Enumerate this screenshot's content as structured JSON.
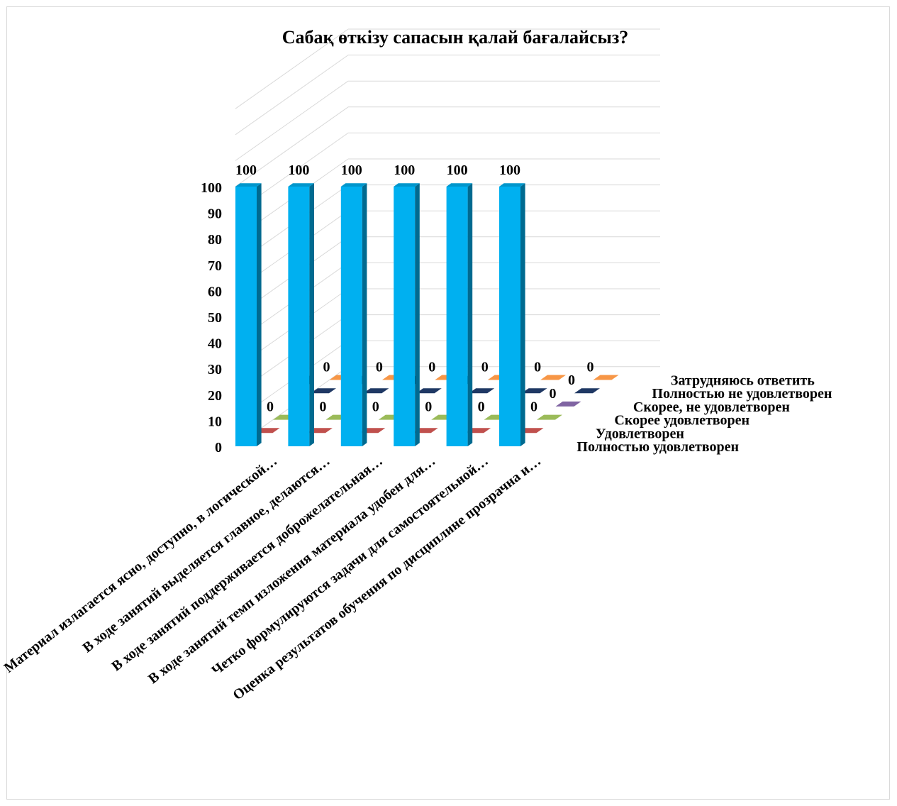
{
  "chart_data": {
    "type": "bar",
    "title": "Сабақ өткізу сапасын қалай бағалайсыз?",
    "xlabel": "",
    "ylabel": "",
    "ylim": [
      0,
      100
    ],
    "yticks": [
      "0",
      "10",
      "20",
      "30",
      "40",
      "50",
      "60",
      "70",
      "80",
      "90",
      "100"
    ],
    "grid": true,
    "projection": "3d",
    "categories": [
      "Материал излагается ясно, доступно, в логической…",
      "В ходе занятий выделяется главное, делаются…",
      "В ходе занятий поддерживается доброжелательная…",
      "В ходе занятий темп изложения материала удобен для…",
      "Четко формулируются задачи для самостоятельной…",
      "Оценка результатов обучения по дисциплине прозрачна и…"
    ],
    "series": [
      {
        "name": "Полностью удовлетворен",
        "color": "#00b0f0",
        "values": [
          100,
          100,
          100,
          100,
          100,
          100
        ]
      },
      {
        "name": "Удовлетворен",
        "color": "#c0504d",
        "values": [
          0,
          0,
          0,
          0,
          0,
          0
        ]
      },
      {
        "name": "Скорее удовлетворен",
        "color": "#9bbb59",
        "values": [
          0,
          0,
          0,
          0,
          0,
          0
        ]
      },
      {
        "name": "Скорее, не удовлетворен",
        "color": "#8064a2",
        "values": [
          null,
          null,
          null,
          null,
          null,
          0
        ]
      },
      {
        "name": "Полностью не удовлетворен",
        "color": "#1f3864",
        "values": [
          0,
          0,
          0,
          0,
          0,
          0
        ]
      },
      {
        "name": "Затрудняюсь ответить",
        "color": "#f79646",
        "values": [
          0,
          0,
          0,
          0,
          0,
          0
        ]
      }
    ]
  }
}
